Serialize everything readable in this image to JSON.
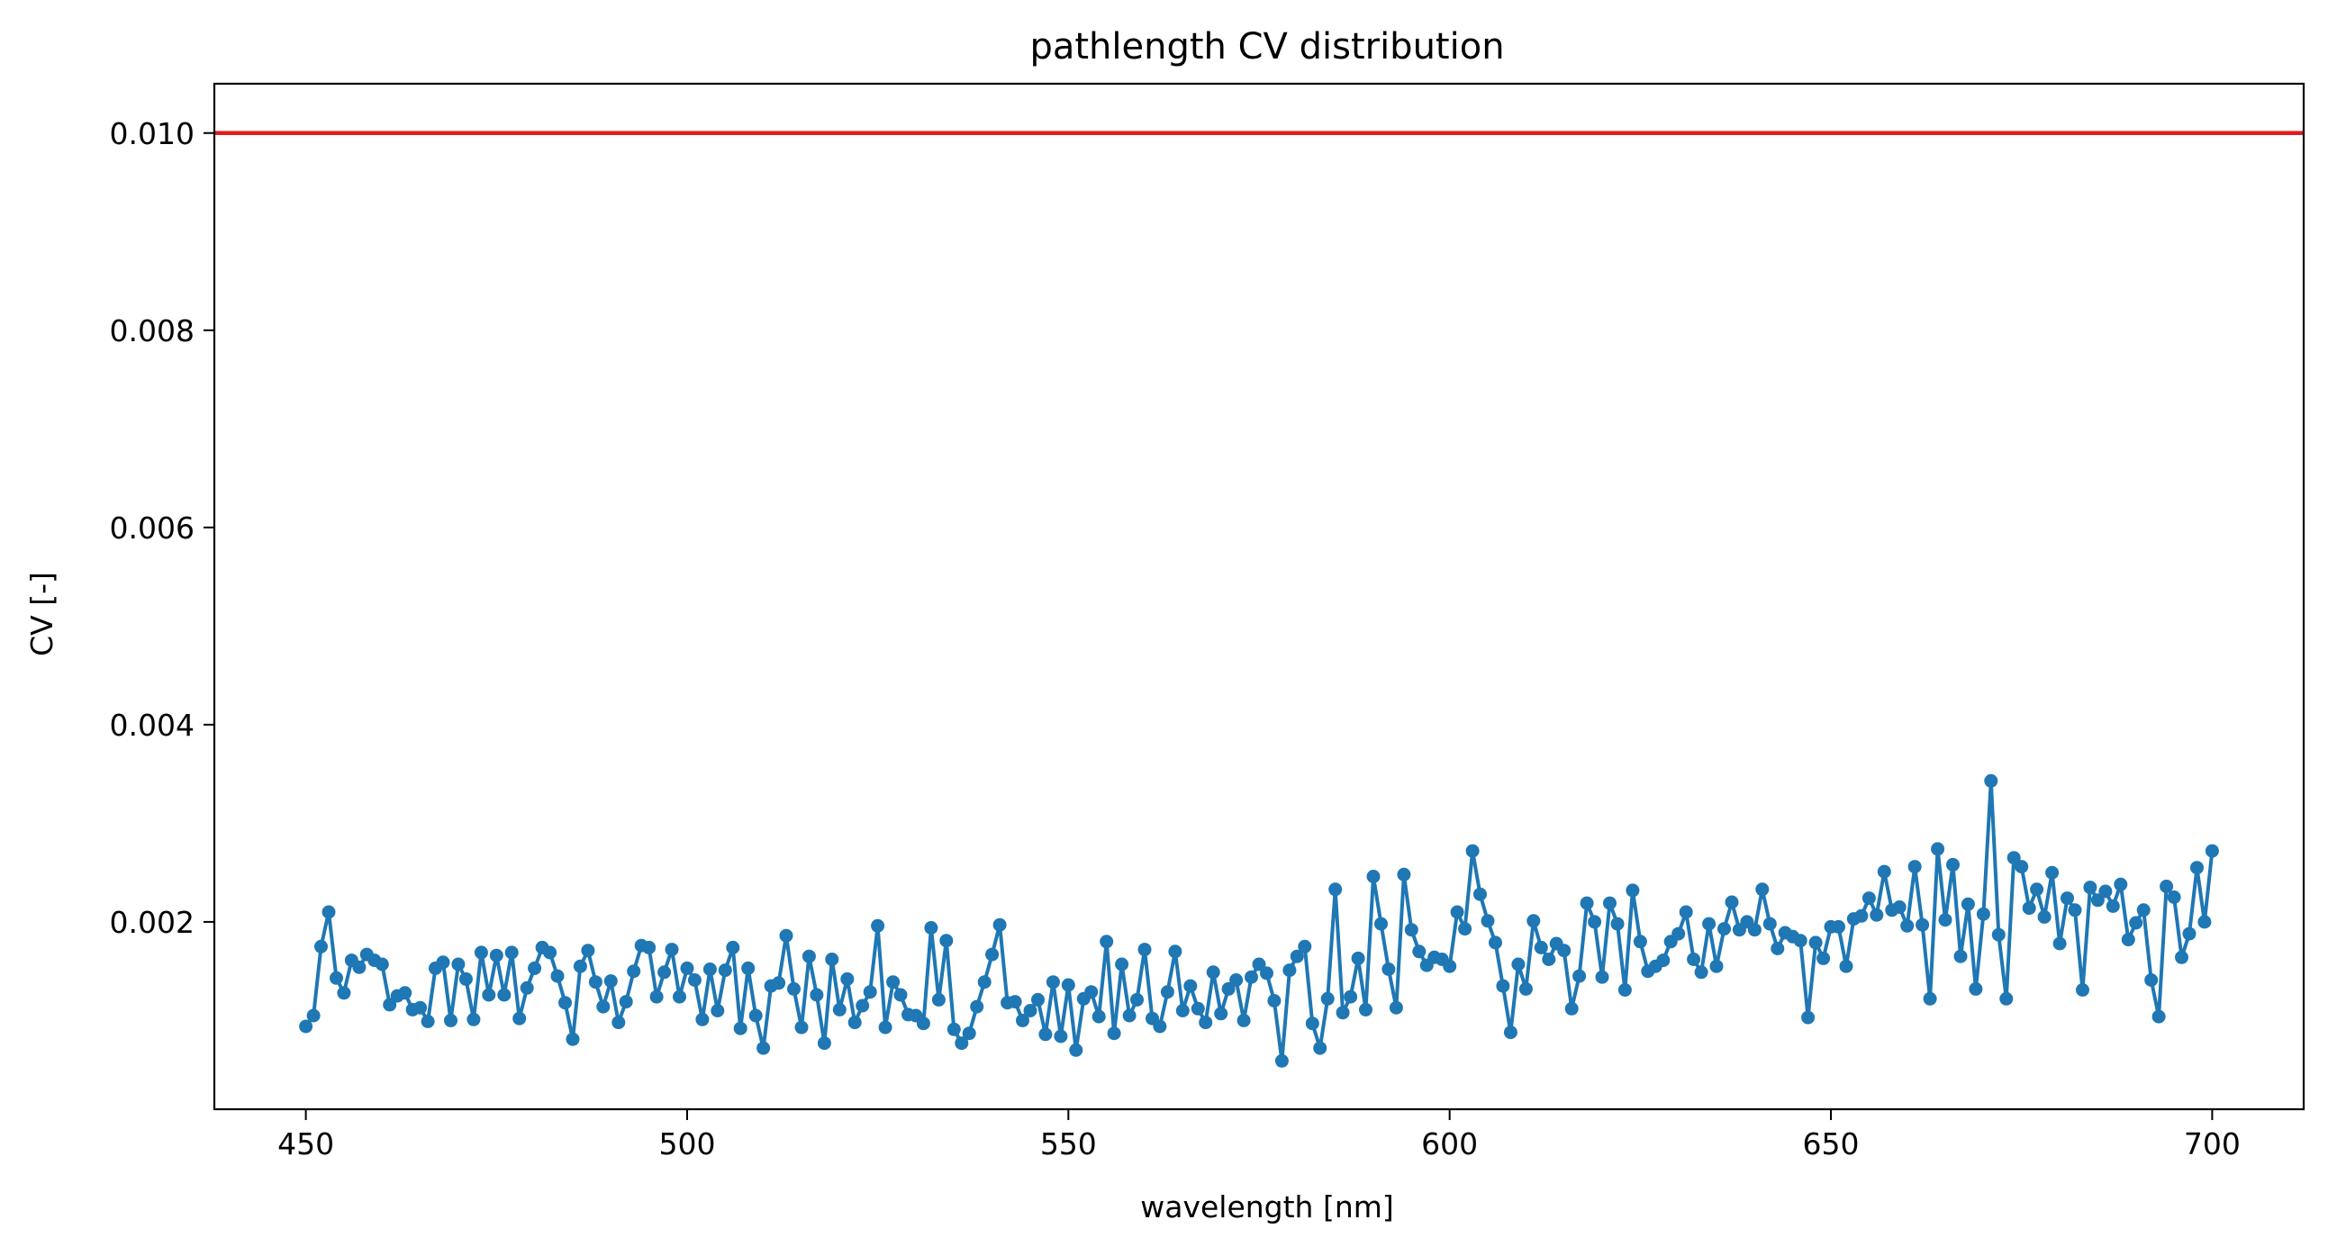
{
  "chart_data": {
    "type": "line",
    "title": "pathlength CV distribution",
    "xlabel": "wavelength [nm]",
    "ylabel": "CV [-]",
    "xlim": [
      438,
      712
    ],
    "ylim": [
      0.0001,
      0.0105
    ],
    "xticks": [
      450,
      500,
      550,
      600,
      650,
      700
    ],
    "yticks": [
      0.002,
      0.004,
      0.006,
      0.008,
      0.01
    ],
    "xtick_labels": [
      "450",
      "500",
      "550",
      "600",
      "650",
      "700"
    ],
    "ytick_labels": [
      "0.002",
      "0.004",
      "0.006",
      "0.008",
      "0.010"
    ],
    "grid": false,
    "reference_line": {
      "y": 0.01,
      "color": "#e41a1c"
    },
    "series": [
      {
        "color": "#1f77b4",
        "marker": "circle",
        "x_start": 450,
        "x_step": 1,
        "values": [
          0.00094,
          0.00105,
          0.00175,
          0.0021,
          0.00143,
          0.00128,
          0.00161,
          0.00154,
          0.00167,
          0.00161,
          0.00157,
          0.00116,
          0.00125,
          0.00128,
          0.00111,
          0.00113,
          0.00099,
          0.00153,
          0.00159,
          0.001,
          0.00157,
          0.00142,
          0.00101,
          0.00169,
          0.00126,
          0.00166,
          0.00126,
          0.00169,
          0.00102,
          0.00133,
          0.00153,
          0.00174,
          0.00169,
          0.00145,
          0.00118,
          0.00081,
          0.00155,
          0.00171,
          0.00139,
          0.00114,
          0.0014,
          0.00098,
          0.00119,
          0.0015,
          0.00176,
          0.00174,
          0.00124,
          0.00149,
          0.00172,
          0.00124,
          0.00153,
          0.00141,
          0.00101,
          0.00152,
          0.0011,
          0.00151,
          0.00174,
          0.00092,
          0.00153,
          0.00105,
          0.00072,
          0.00135,
          0.00138,
          0.00186,
          0.00132,
          0.00093,
          0.00165,
          0.00126,
          0.00077,
          0.00162,
          0.00111,
          0.00142,
          0.00098,
          0.00115,
          0.00129,
          0.00196,
          0.00093,
          0.00139,
          0.00126,
          0.00106,
          0.00105,
          0.00097,
          0.00194,
          0.00121,
          0.00181,
          0.00091,
          0.00077,
          0.00087,
          0.00114,
          0.00139,
          0.00167,
          0.00197,
          0.00118,
          0.00119,
          0.001,
          0.0011,
          0.00121,
          0.00086,
          0.00139,
          0.00084,
          0.00136,
          0.0007,
          0.00122,
          0.00129,
          0.00104,
          0.0018,
          0.00087,
          0.00157,
          0.00105,
          0.00121,
          0.00172,
          0.00102,
          0.00094,
          0.00129,
          0.0017,
          0.0011,
          0.00135,
          0.00112,
          0.00098,
          0.00149,
          0.00107,
          0.00132,
          0.00141,
          0.001,
          0.00144,
          0.00157,
          0.00148,
          0.0012,
          0.00059,
          0.00151,
          0.00165,
          0.00175,
          0.00097,
          0.00072,
          0.00122,
          0.00233,
          0.00108,
          0.00124,
          0.00163,
          0.00111,
          0.00246,
          0.00198,
          0.00152,
          0.00113,
          0.00248,
          0.00192,
          0.0017,
          0.00156,
          0.00164,
          0.00162,
          0.00155,
          0.0021,
          0.00193,
          0.00272,
          0.00228,
          0.00201,
          0.00179,
          0.00135,
          0.00088,
          0.00157,
          0.00132,
          0.00201,
          0.00174,
          0.00162,
          0.00178,
          0.00171,
          0.00112,
          0.00145,
          0.00219,
          0.002,
          0.00144,
          0.00219,
          0.00198,
          0.00131,
          0.00232,
          0.0018,
          0.0015,
          0.00155,
          0.00161,
          0.0018,
          0.00188,
          0.0021,
          0.00162,
          0.00149,
          0.00198,
          0.00155,
          0.00193,
          0.0022,
          0.00192,
          0.002,
          0.00192,
          0.00233,
          0.00198,
          0.00173,
          0.00189,
          0.00185,
          0.00181,
          0.00103,
          0.00179,
          0.00163,
          0.00195,
          0.00195,
          0.00155,
          0.00203,
          0.00206,
          0.00224,
          0.00207,
          0.00251,
          0.00212,
          0.00215,
          0.00196,
          0.00256,
          0.00197,
          0.00122,
          0.00274,
          0.00202,
          0.00258,
          0.00165,
          0.00218,
          0.00132,
          0.00208,
          0.00343,
          0.00187,
          0.00122,
          0.00265,
          0.00256,
          0.00214,
          0.00233,
          0.00205,
          0.0025,
          0.00178,
          0.00224,
          0.00212,
          0.00131,
          0.00235,
          0.00222,
          0.00231,
          0.00216,
          0.00238,
          0.00182,
          0.00199,
          0.00212,
          0.00141,
          0.00104,
          0.00236,
          0.00225,
          0.00164,
          0.00188,
          0.00255,
          0.002,
          0.00272
        ]
      }
    ]
  }
}
